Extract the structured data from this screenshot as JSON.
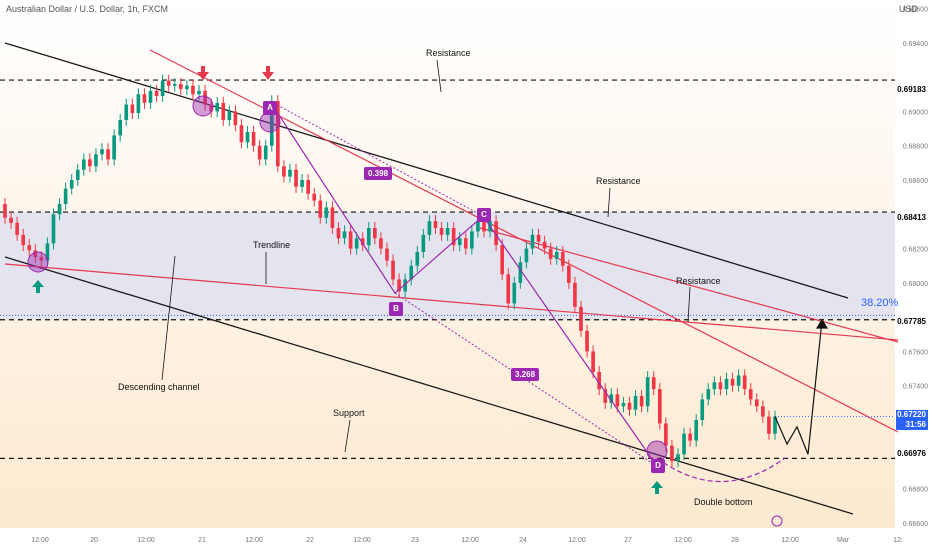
{
  "header": {
    "symbol_line": "Australian Dollar / U.S. Dollar, 1h, FXCM",
    "currency": "USD"
  },
  "chart_data": {
    "type": "candlestick",
    "title": "Australian Dollar / U.S. Dollar, 1h, FXCM",
    "ylim": [
      0.6657,
      0.6965
    ],
    "y_ticks": [
      "0.69600",
      "0.69400",
      "0.69183",
      "0.69000",
      "0.68800",
      "0.68600",
      "0.68413",
      "0.68200",
      "0.68000",
      "0.67785",
      "0.67600",
      "0.67400",
      "0.67220",
      "0.66976",
      "0.66800",
      "0.66600"
    ],
    "x_ticks": [
      "12:00",
      "20",
      "12:00",
      "21",
      "12:00",
      "22",
      "12:00",
      "23",
      "12:00",
      "24",
      "12:00",
      "27",
      "12:00",
      "28",
      "12:00",
      "Mar",
      "12:"
    ],
    "current_price": "0.67220",
    "countdown": "31:56",
    "levels": [
      {
        "label": "0.69183",
        "name": "Resistance",
        "value": 0.69183
      },
      {
        "label": "0.68413",
        "name": "Resistance",
        "value": 0.68413
      },
      {
        "label": "0.67785",
        "name": "Resistance",
        "value": 0.67785
      },
      {
        "label": "0.66976",
        "name": "Support",
        "value": 0.66976
      }
    ],
    "fib": "38.20%",
    "annotations": [
      "Resistance",
      "Resistance",
      "Resistance",
      "Trendline",
      "Descending channel",
      "Support",
      "Double bottom"
    ],
    "harmonic_points": [
      {
        "label": "A",
        "value": 0.6906
      },
      {
        "label": "B",
        "value": 0.6794
      },
      {
        "label": "C",
        "value": 0.6839
      },
      {
        "label": "D",
        "value": 0.6693
      }
    ],
    "ratios": [
      "0.398",
      "3.268"
    ],
    "candles": [
      [
        0.6846,
        0.6838
      ],
      [
        0.6838,
        0.6835
      ],
      [
        0.6835,
        0.6828
      ],
      [
        0.6828,
        0.6822
      ],
      [
        0.6822,
        0.6819
      ],
      [
        0.6819,
        0.6815
      ],
      [
        0.6815,
        0.6813
      ],
      [
        0.6813,
        0.6823
      ],
      [
        0.6823,
        0.684
      ],
      [
        0.684,
        0.6846
      ],
      [
        0.6846,
        0.6855
      ],
      [
        0.6855,
        0.686
      ],
      [
        0.686,
        0.6866
      ],
      [
        0.6866,
        0.6872
      ],
      [
        0.6872,
        0.6868
      ],
      [
        0.6868,
        0.6875
      ],
      [
        0.6875,
        0.6878
      ],
      [
        0.6878,
        0.6872
      ],
      [
        0.6872,
        0.6886
      ],
      [
        0.6886,
        0.6895
      ],
      [
        0.6895,
        0.6904
      ],
      [
        0.6904,
        0.6899
      ],
      [
        0.6899,
        0.691
      ],
      [
        0.691,
        0.6905
      ],
      [
        0.6905,
        0.6912
      ],
      [
        0.6912,
        0.6909
      ],
      [
        0.6909,
        0.6918
      ],
      [
        0.6918,
        0.6915
      ],
      [
        0.6915,
        0.6916
      ],
      [
        0.6916,
        0.6913
      ],
      [
        0.6913,
        0.6915
      ],
      [
        0.6915,
        0.691
      ],
      [
        0.691,
        0.6912
      ],
      [
        0.6912,
        0.6904
      ],
      [
        0.6904,
        0.69
      ],
      [
        0.69,
        0.6905
      ],
      [
        0.6905,
        0.6895
      ],
      [
        0.6895,
        0.69
      ],
      [
        0.69,
        0.6892
      ],
      [
        0.6892,
        0.6882
      ],
      [
        0.6882,
        0.6888
      ],
      [
        0.6888,
        0.688
      ],
      [
        0.688,
        0.6872
      ],
      [
        0.6872,
        0.688
      ],
      [
        0.688,
        0.6906
      ],
      [
        0.6906,
        0.6868
      ],
      [
        0.6868,
        0.6862
      ],
      [
        0.6862,
        0.6866
      ],
      [
        0.6866,
        0.6856
      ],
      [
        0.6856,
        0.686
      ],
      [
        0.686,
        0.6852
      ],
      [
        0.6852,
        0.6848
      ],
      [
        0.6848,
        0.6838
      ],
      [
        0.6838,
        0.6844
      ],
      [
        0.6844,
        0.6832
      ],
      [
        0.6832,
        0.6826
      ],
      [
        0.6826,
        0.683
      ],
      [
        0.683,
        0.682
      ],
      [
        0.682,
        0.6826
      ],
      [
        0.6826,
        0.6822
      ],
      [
        0.6822,
        0.6832
      ],
      [
        0.6832,
        0.6826
      ],
      [
        0.6826,
        0.682
      ],
      [
        0.682,
        0.6813
      ],
      [
        0.6813,
        0.6802
      ],
      [
        0.6802,
        0.6795
      ],
      [
        0.6795,
        0.6802
      ],
      [
        0.6802,
        0.681
      ],
      [
        0.681,
        0.6818
      ],
      [
        0.6818,
        0.6828
      ],
      [
        0.6828,
        0.6836
      ],
      [
        0.6836,
        0.6832
      ],
      [
        0.6832,
        0.6828
      ],
      [
        0.6828,
        0.6832
      ],
      [
        0.6832,
        0.6822
      ],
      [
        0.6822,
        0.6826
      ],
      [
        0.6826,
        0.682
      ],
      [
        0.682,
        0.683
      ],
      [
        0.683,
        0.6836
      ],
      [
        0.6836,
        0.683
      ],
      [
        0.683,
        0.6836
      ],
      [
        0.6836,
        0.6822
      ],
      [
        0.6822,
        0.6805
      ],
      [
        0.6805,
        0.6788
      ],
      [
        0.6788,
        0.68
      ],
      [
        0.68,
        0.6812
      ],
      [
        0.6812,
        0.682
      ],
      [
        0.682,
        0.6828
      ],
      [
        0.6828,
        0.6824
      ],
      [
        0.6824,
        0.682
      ],
      [
        0.682,
        0.6814
      ],
      [
        0.6814,
        0.6818
      ],
      [
        0.6818,
        0.681
      ],
      [
        0.681,
        0.68
      ],
      [
        0.68,
        0.6786
      ],
      [
        0.6786,
        0.6772
      ],
      [
        0.6772,
        0.676
      ],
      [
        0.676,
        0.6748
      ],
      [
        0.6748,
        0.6738
      ],
      [
        0.6738,
        0.673
      ],
      [
        0.673,
        0.6735
      ],
      [
        0.6735,
        0.6728
      ],
      [
        0.6728,
        0.673
      ],
      [
        0.673,
        0.6726
      ],
      [
        0.6726,
        0.6734
      ],
      [
        0.6734,
        0.6728
      ],
      [
        0.6728,
        0.6745
      ],
      [
        0.6745,
        0.6738
      ],
      [
        0.6738,
        0.6718
      ],
      [
        0.6718,
        0.6705
      ],
      [
        0.6705,
        0.6696
      ],
      [
        0.6696,
        0.67
      ],
      [
        0.67,
        0.6712
      ],
      [
        0.6712,
        0.6708
      ],
      [
        0.6708,
        0.672
      ],
      [
        0.672,
        0.6732
      ],
      [
        0.6732,
        0.6738
      ],
      [
        0.6738,
        0.6742
      ],
      [
        0.6742,
        0.6738
      ],
      [
        0.6738,
        0.6744
      ],
      [
        0.6744,
        0.674
      ],
      [
        0.674,
        0.6746
      ],
      [
        0.6746,
        0.6738
      ],
      [
        0.6738,
        0.6732
      ],
      [
        0.6732,
        0.6728
      ],
      [
        0.6728,
        0.6722
      ],
      [
        0.6722,
        0.6712
      ],
      [
        0.6712,
        0.6722
      ]
    ],
    "projection": [
      0.6722,
      0.6706,
      0.6716,
      0.67,
      0.6778
    ],
    "colors": {
      "up": "#089981",
      "down": "#f23645",
      "resistance_line": "#e53950",
      "channel": "#1a1a1a",
      "purple": "#9c27b0",
      "fib": "#2962ff"
    }
  }
}
